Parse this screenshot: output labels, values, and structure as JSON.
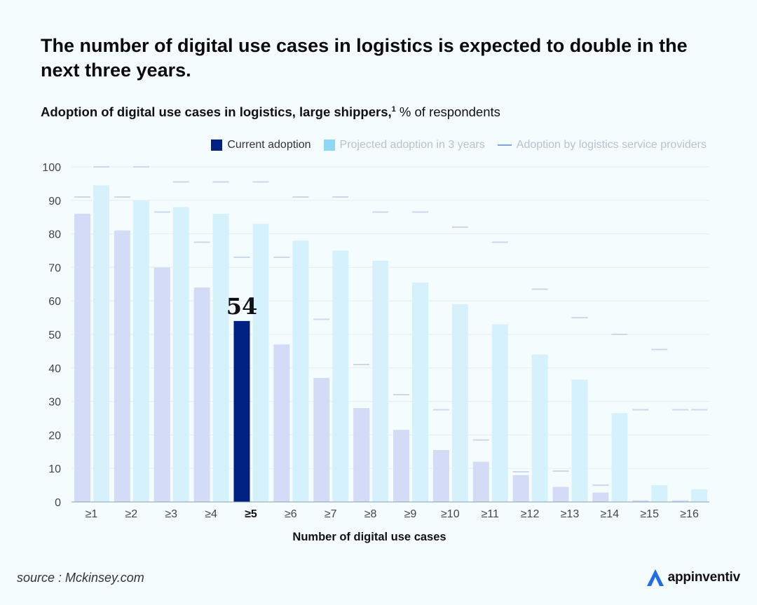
{
  "headline": "The number of digital use cases in logistics is expected to double in the next three years.",
  "subtitle": {
    "bold": "Adoption of digital use cases in logistics, large shippers,",
    "footnote": "1",
    "rest": " % of respondents"
  },
  "legend": {
    "current": "Current adoption",
    "projected": "Projected adoption in 3 years",
    "lsp": "Adoption by logistics service providers"
  },
  "colors": {
    "current": "#d3dbf7",
    "highlight": "#002182",
    "projected": "#d5f2fc",
    "projected_swatch": "#8fd8f5",
    "lsp": "#cfd7ea",
    "lsp_swatch": "#7fa5e8",
    "legend_text_muted": "#b7c3cc",
    "axis_text": "#444444",
    "grid": "#e4eef2"
  },
  "chart_data": {
    "type": "bar",
    "title": "Adoption of digital use cases in logistics, large shippers, % of respondents",
    "xlabel": "Number of digital use cases",
    "ylabel": "",
    "ylim": [
      0,
      100
    ],
    "yticks": [
      0,
      10,
      20,
      30,
      40,
      50,
      60,
      70,
      80,
      90,
      100
    ],
    "grid": true,
    "legend_position": "top-right",
    "categories": [
      "≥1",
      "≥2",
      "≥3",
      "≥4",
      "≥5",
      "≥6",
      "≥7",
      "≥8",
      "≥9",
      "≥10",
      "≥11",
      "≥12",
      "≥13",
      "≥14",
      "≥15",
      "≥16"
    ],
    "highlight_category": "≥5",
    "series": [
      {
        "name": "Current adoption",
        "kind": "bar",
        "values": [
          86,
          81,
          70,
          64,
          54,
          47,
          37,
          28,
          21.5,
          15.5,
          12,
          8,
          4.5,
          2.8,
          0.5,
          0.5
        ]
      },
      {
        "name": "Projected adoption in 3 years",
        "kind": "bar",
        "values": [
          94.5,
          90,
          88,
          86,
          83,
          78,
          75,
          72,
          65.5,
          59,
          53,
          44,
          36.5,
          26.5,
          5,
          3.8
        ]
      },
      {
        "name": "Adoption by logistics service providers",
        "kind": "tick",
        "values": [
          91,
          91,
          86.5,
          77.5,
          73,
          73,
          54.5,
          41,
          32,
          27.5,
          18.5,
          9,
          9.2,
          5,
          27.5,
          27.5
        ],
        "values_right": [
          100,
          100,
          95.5,
          95.5,
          95.5,
          91,
          91,
          86.5,
          86.5,
          82,
          77.5,
          63.5,
          55,
          50,
          45.5,
          27.5
        ]
      }
    ],
    "annotations": [
      {
        "category": "≥5",
        "text": "54"
      }
    ]
  },
  "footer": {
    "source": "source : Mckinsey.com",
    "brand": "appinventiv"
  }
}
